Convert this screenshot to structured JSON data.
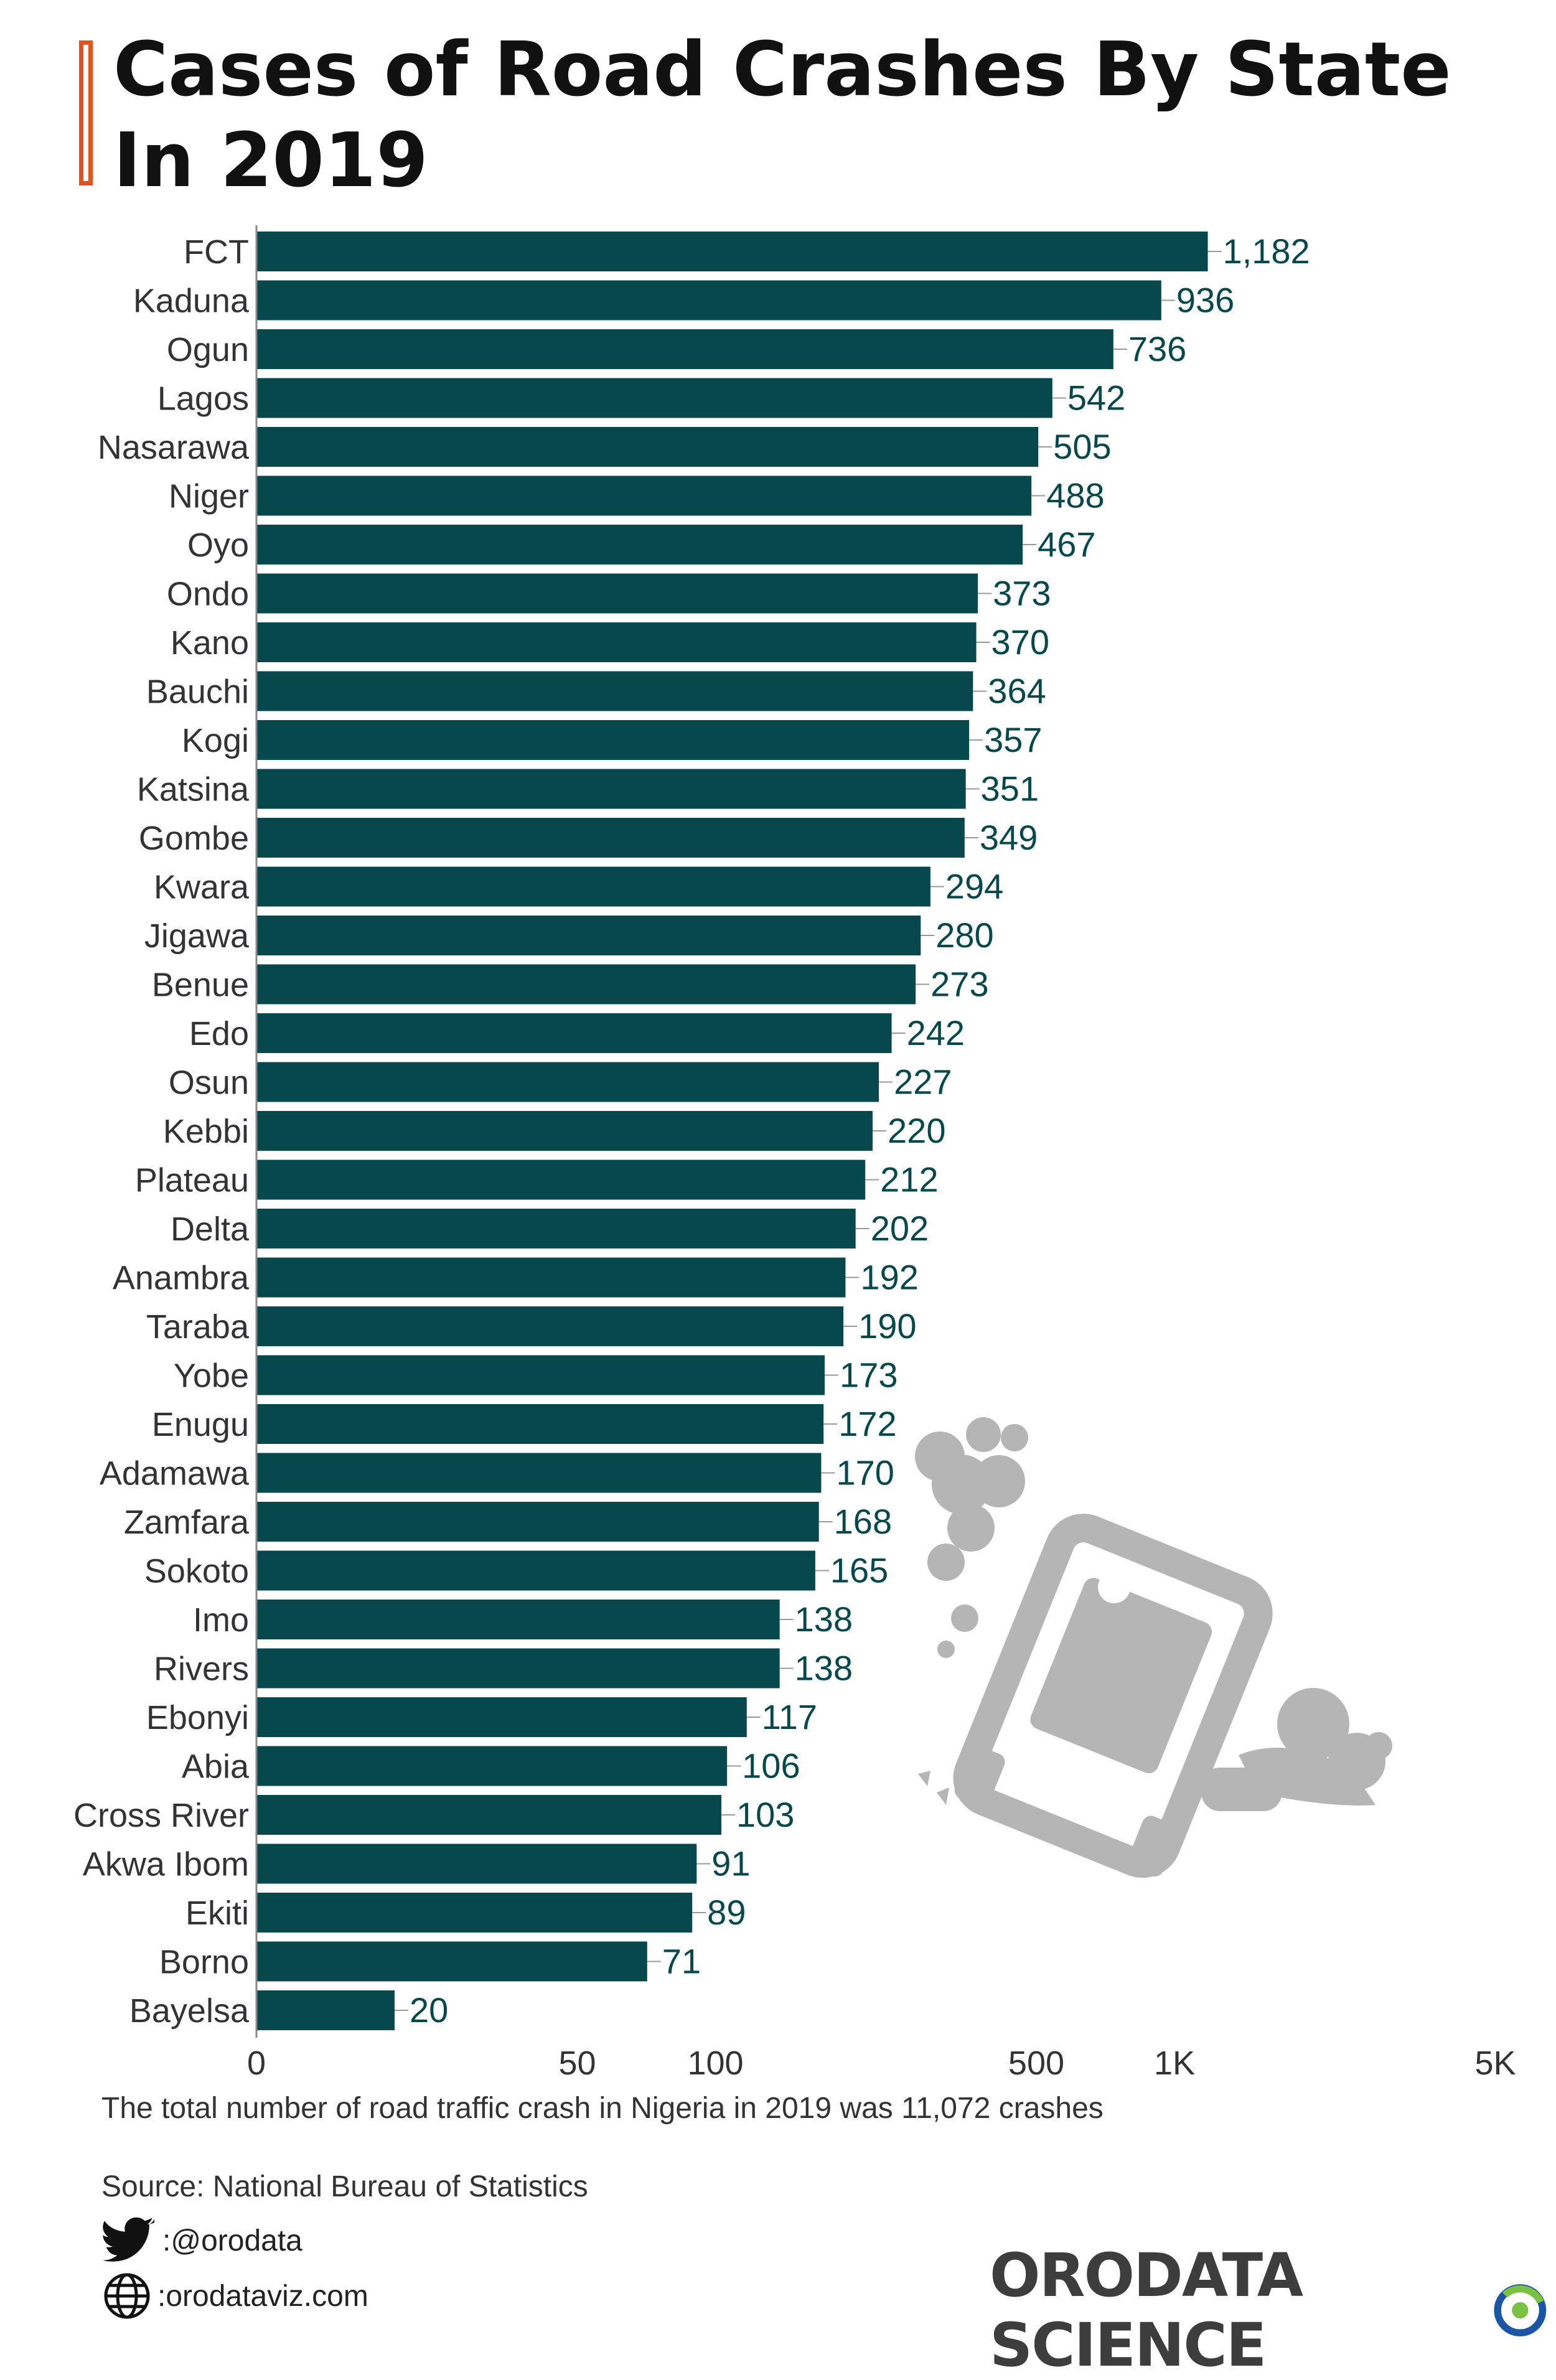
{
  "title": "Cases of Road Crashes By State In 2019",
  "chart_data": {
    "type": "bar",
    "orientation": "horizontal",
    "x_scale": "log",
    "categories": [
      "FCT",
      "Kaduna",
      "Ogun",
      "Lagos",
      "Nasarawa",
      "Niger",
      "Oyo",
      "Ondo",
      "Kano",
      "Bauchi",
      "Kogi",
      "Katsina",
      "Gombe",
      "Kwara",
      "Jigawa",
      "Benue",
      "Edo",
      "Osun",
      "Kebbi",
      "Plateau",
      "Delta",
      "Anambra",
      "Taraba",
      "Yobe",
      "Enugu",
      "Adamawa",
      "Zamfara",
      "Sokoto",
      "Imo",
      "Rivers",
      "Ebonyi",
      "Abia",
      "Cross River",
      "Akwa Ibom",
      "Ekiti",
      "Borno",
      "Bayelsa"
    ],
    "values": [
      1182,
      936,
      736,
      542,
      505,
      488,
      467,
      373,
      370,
      364,
      357,
      351,
      349,
      294,
      280,
      273,
      242,
      227,
      220,
      212,
      202,
      192,
      190,
      173,
      172,
      170,
      168,
      165,
      138,
      138,
      117,
      106,
      103,
      91,
      89,
      71,
      20
    ],
    "value_labels": [
      "1,182",
      "936",
      "736",
      "542",
      "505",
      "488",
      "467",
      "373",
      "370",
      "364",
      "357",
      "351",
      "349",
      "294",
      "280",
      "273",
      "242",
      "227",
      "220",
      "212",
      "202",
      "192",
      "190",
      "173",
      "172",
      "170",
      "168",
      "165",
      "138",
      "138",
      "117",
      "106",
      "103",
      "91",
      "89",
      "71",
      "20"
    ],
    "x_ticks": [
      {
        "value": 0,
        "label": "0"
      },
      {
        "value": 50,
        "label": "50"
      },
      {
        "value": 100,
        "label": "100"
      },
      {
        "value": 500,
        "label": "500"
      },
      {
        "value": 1000,
        "label": "1K"
      },
      {
        "value": 5000,
        "label": "5K"
      }
    ],
    "bar_color": "#06484b",
    "label_color": "#06484b"
  },
  "footnote": "The total number of road traffic crash in Nigeria in 2019 was 11,072 crashes",
  "source": "Source: National Bureau of Statistics",
  "social": {
    "twitter": ":@orodata",
    "twitter_icon": "twitter-bird-icon",
    "website": ":orodataviz.com",
    "website_icon": "globe-icon"
  },
  "brand": "ORODATA SCIENCE"
}
